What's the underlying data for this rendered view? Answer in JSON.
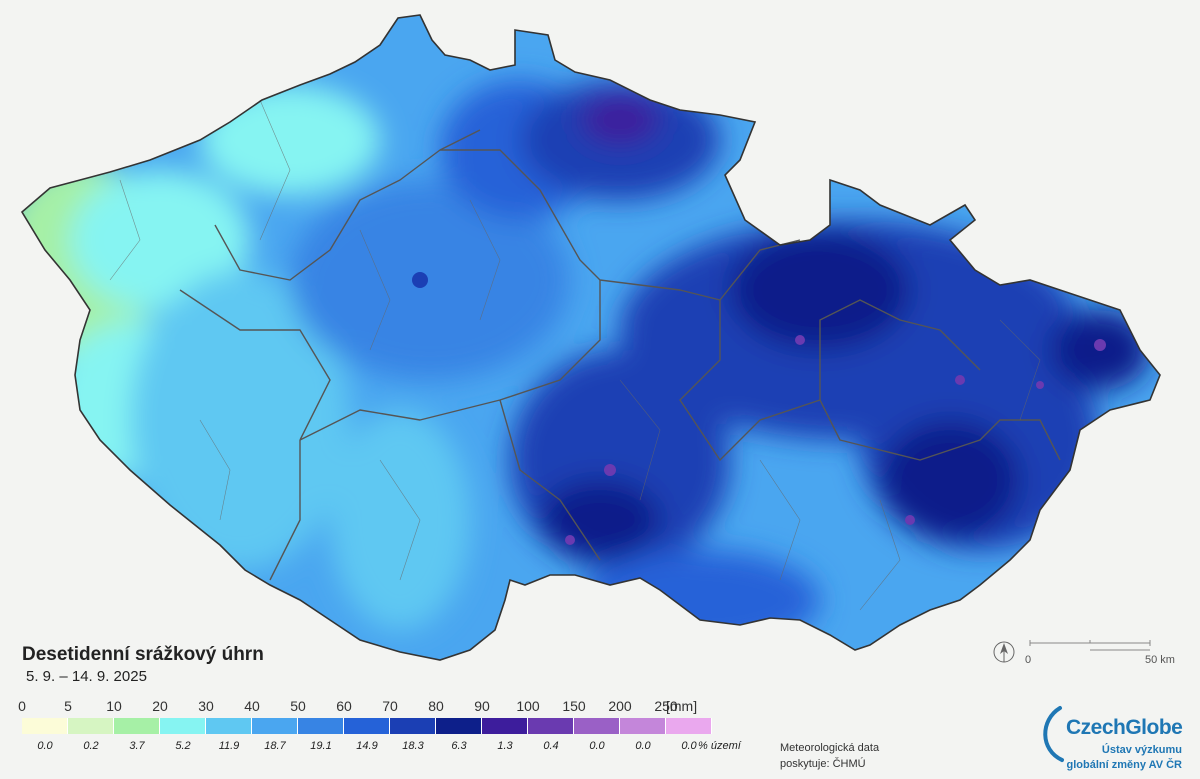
{
  "title": "Desetidenní srážkový úhrn",
  "subtitle": "5. 9. – 14. 9. 2025",
  "legend": {
    "ticks": [
      "0",
      "5",
      "10",
      "20",
      "30",
      "40",
      "50",
      "60",
      "70",
      "80",
      "90",
      "100",
      "150",
      "200",
      "250"
    ],
    "unit": "[mm]",
    "classes": [
      {
        "color": "#fcfcd8",
        "pct": "0.0"
      },
      {
        "color": "#d6f5c2",
        "pct": "0.2"
      },
      {
        "color": "#a6f0a6",
        "pct": "3.7"
      },
      {
        "color": "#86f4f2",
        "pct": "5.2"
      },
      {
        "color": "#5fc8f2",
        "pct": "11.9"
      },
      {
        "color": "#4aa6f0",
        "pct": "18.7"
      },
      {
        "color": "#3784e4",
        "pct": "19.1"
      },
      {
        "color": "#2562d8",
        "pct": "14.9"
      },
      {
        "color": "#1b3fb4",
        "pct": "18.3"
      },
      {
        "color": "#0d1f8a",
        "pct": "6.3"
      },
      {
        "color": "#3d1d9c",
        "pct": "1.3"
      },
      {
        "color": "#6a3ab0",
        "pct": "0.4"
      },
      {
        "color": "#9a60c6",
        "pct": "0.0"
      },
      {
        "color": "#c486da",
        "pct": "0.0"
      },
      {
        "color": "#eaa8ee",
        "pct": "0.0"
      }
    ],
    "pct_unit": "% území"
  },
  "source": {
    "line1": "Meteorologická data",
    "line2": "poskytuje: ČHMÚ"
  },
  "scalebar": {
    "zero": "0",
    "end": "50 km"
  },
  "logo": {
    "name": "CzechGlobe",
    "line1": "Ústav výzkumu",
    "line2": "globální změny AV ČR"
  }
}
